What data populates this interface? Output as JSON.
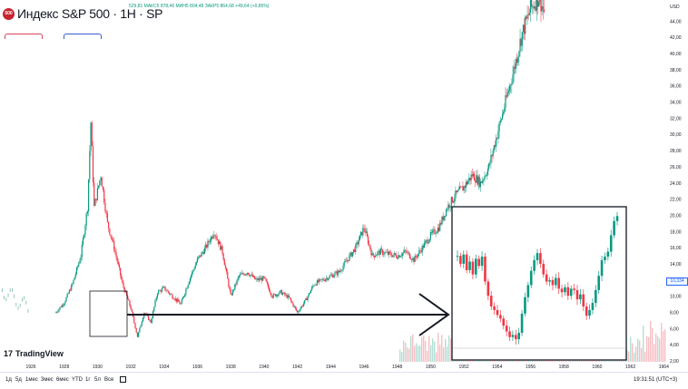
{
  "header": {
    "logo_text": "500",
    "title": "Индекс S&P 500 · 1H · SP",
    "ohlc": "5​29,81 МАКС5 878,46 МИН5 804,48 ЗАКР5 864,68 +49,64 (+0,85%)",
    "currency": "USD"
  },
  "branding": {
    "logo_mark": "17",
    "name": "TradingView"
  },
  "bottom_bar": {
    "timeframes": [
      "1д",
      "5д",
      "1мес",
      "3мес",
      "6мес",
      "YTD",
      "1г",
      "5л",
      "Все"
    ],
    "clock": "19:31:51 (UTC+3)",
    "pct": "%",
    "log": "log",
    "auto": "авто"
  },
  "last_price_label": "10,334",
  "colors": {
    "up": "#089981",
    "down": "#f23645",
    "line": "#131722"
  },
  "chart_data": {
    "type": "candlestick",
    "x_axis": {
      "labels": [
        "1926",
        "1928",
        "1930",
        "1932",
        "1934",
        "1936",
        "1938",
        "1940",
        "1942",
        "1944",
        "1946",
        "1948",
        "1950",
        "1952",
        "1954",
        "1956",
        "1958",
        "1960",
        "1962",
        "1964",
        "19"
      ]
    },
    "y_axis": {
      "labels": [
        "2,00",
        "4,00",
        "6,00",
        "8,00",
        "10,00",
        "12,00",
        "14,00",
        "16,00",
        "18,00",
        "20,00",
        "22,00",
        "24,00",
        "26,00",
        "28,00",
        "30,00",
        "32,00",
        "34,00",
        "36,00",
        "38,00",
        "40,00",
        "42,00",
        "44,00"
      ],
      "range": [
        1.0,
        46.5
      ]
    },
    "series": [
      {
        "style": "candles",
        "points": [
          [
            "1927.5",
            8.0
          ],
          [
            "1928.0",
            9.2
          ],
          [
            "1928.5",
            11.5
          ],
          [
            "1929.0",
            15.0
          ],
          [
            "1929.4",
            21.0
          ],
          [
            "1929.6",
            31.5
          ],
          [
            "1929.8",
            21.0
          ],
          [
            "1930.2",
            25.0
          ],
          [
            "1930.6",
            19.0
          ],
          [
            "1931.0",
            16.0
          ],
          [
            "1931.5",
            11.5
          ],
          [
            "1932.0",
            8.5
          ],
          [
            "1932.4",
            5.0
          ],
          [
            "1932.8",
            8.0
          ],
          [
            "1933.2",
            6.8
          ],
          [
            "1933.6",
            10.5
          ],
          [
            "1934.0",
            11.0
          ],
          [
            "1934.5",
            10.0
          ],
          [
            "1935.0",
            9.0
          ],
          [
            "1935.5",
            12.0
          ],
          [
            "1936.0",
            14.5
          ],
          [
            "1936.5",
            16.0
          ],
          [
            "1937.0",
            18.0
          ],
          [
            "1937.5",
            15.5
          ],
          [
            "1938.0",
            10.0
          ],
          [
            "1938.5",
            12.5
          ],
          [
            "1939.0",
            13.0
          ],
          [
            "1939.5",
            12.0
          ],
          [
            "1940.0",
            12.2
          ],
          [
            "1940.5",
            10.0
          ],
          [
            "1941.0",
            10.5
          ],
          [
            "1941.5",
            9.8
          ],
          [
            "1942.0",
            8.0
          ],
          [
            "1942.5",
            9.5
          ],
          [
            "1943.0",
            11.5
          ],
          [
            "1943.5",
            12.0
          ],
          [
            "1944.0",
            12.5
          ],
          [
            "1944.5",
            13.0
          ],
          [
            "1945.0",
            14.5
          ],
          [
            "1945.5",
            16.0
          ],
          [
            "1946.0",
            18.5
          ],
          [
            "1946.5",
            15.0
          ],
          [
            "1947.0",
            15.5
          ],
          [
            "1947.5",
            15.2
          ],
          [
            "1948.0",
            15.0
          ],
          [
            "1948.5",
            15.5
          ],
          [
            "1949.0",
            14.5
          ],
          [
            "1949.5",
            16.0
          ],
          [
            "1950.0",
            17.5
          ],
          [
            "1950.5",
            18.5
          ],
          [
            "1951.0",
            21.0
          ],
          [
            "1951.5",
            22.5
          ],
          [
            "1952.0",
            23.5
          ],
          [
            "1952.5",
            25.0
          ],
          [
            "1953.0",
            24.0
          ],
          [
            "1953.5",
            26.0
          ],
          [
            "1954.0",
            30.0
          ],
          [
            "1954.5",
            34.0
          ],
          [
            "1955.0",
            38.0
          ],
          [
            "1955.5",
            42.5
          ],
          [
            "1956.0",
            45.5
          ],
          [
            "1956.5",
            47.0
          ],
          [
            "1957.0",
            44.0
          ],
          [
            "1957.4",
            40.0
          ],
          [
            "1957.8",
            42.0
          ],
          [
            "1958.0",
            44.5
          ],
          [
            "1958.2",
            47.0
          ]
        ]
      }
    ],
    "volume": {
      "note": ""
    },
    "inset": {
      "y_axis": {
        "labels": [
          "2,00",
          "4,00",
          "6,00",
          "8,00",
          "10,00",
          "12,00",
          "14,00",
          "16,00",
          "18,00",
          "20,00"
        ]
      },
      "series_points": [
        [
          0,
          14.6
        ],
        [
          1,
          13.5
        ],
        [
          2,
          14.8
        ],
        [
          3,
          12.6
        ],
        [
          4,
          13.8
        ],
        [
          5,
          12.0
        ],
        [
          6,
          14.2
        ],
        [
          7,
          13.2
        ],
        [
          8,
          14.5
        ],
        [
          9,
          11.0
        ],
        [
          10,
          9.0
        ],
        [
          11,
          7.5
        ],
        [
          12,
          7.0
        ],
        [
          13,
          6.3
        ],
        [
          14,
          5.8
        ],
        [
          15,
          4.8
        ],
        [
          16,
          4.0
        ],
        [
          17,
          3.2
        ],
        [
          18,
          3.5
        ],
        [
          19,
          2.9
        ],
        [
          20,
          3.8
        ],
        [
          21,
          6.5
        ],
        [
          22,
          8.8
        ],
        [
          23,
          10.5
        ],
        [
          24,
          12.5
        ],
        [
          25,
          14.0
        ],
        [
          26,
          15.0
        ],
        [
          27,
          13.5
        ],
        [
          28,
          12.0
        ],
        [
          29,
          11.0
        ],
        [
          30,
          11.2
        ],
        [
          31,
          10.5
        ],
        [
          32,
          11.5
        ],
        [
          33,
          10.0
        ],
        [
          34,
          9.5
        ],
        [
          35,
          10.2
        ],
        [
          36,
          9.0
        ],
        [
          37,
          10.0
        ],
        [
          38,
          9.8
        ],
        [
          39,
          8.5
        ],
        [
          40,
          9.2
        ],
        [
          41,
          7.5
        ],
        [
          42,
          6.2
        ],
        [
          43,
          7.0
        ],
        [
          44,
          8.0
        ],
        [
          45,
          9.8
        ],
        [
          46,
          11.8
        ],
        [
          47,
          14.0
        ],
        [
          48,
          14.5
        ],
        [
          49,
          15.2
        ],
        [
          50,
          17.5
        ],
        [
          51,
          19.5
        ],
        [
          52,
          20.2
        ]
      ]
    }
  }
}
